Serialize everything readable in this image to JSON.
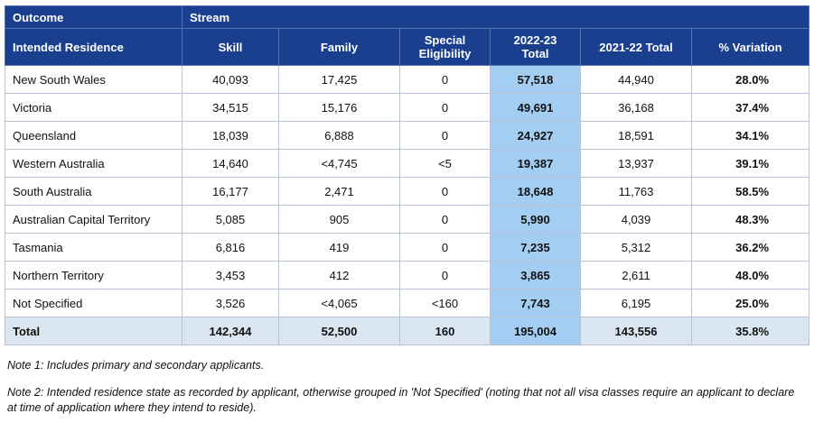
{
  "table": {
    "header_row1": {
      "outcome": "Outcome",
      "stream": "Stream"
    },
    "columns": {
      "residence": "Intended Residence",
      "skill": "Skill",
      "family": "Family",
      "special_1": "Special",
      "special_2": "Eligibility",
      "total2223_1": "2022-23",
      "total2223_2": "Total",
      "total2122": "2021-22 Total",
      "variation": "% Variation"
    },
    "rows": [
      {
        "name": "New South Wales",
        "skill": "40,093",
        "family": "17,425",
        "special": "0",
        "total2223": "57,518",
        "total2122": "44,940",
        "variation": "28.0%"
      },
      {
        "name": "Victoria",
        "skill": "34,515",
        "family": "15,176",
        "special": "0",
        "total2223": "49,691",
        "total2122": "36,168",
        "variation": "37.4%"
      },
      {
        "name": "Queensland",
        "skill": "18,039",
        "family": "6,888",
        "special": "0",
        "total2223": "24,927",
        "total2122": "18,591",
        "variation": "34.1%"
      },
      {
        "name": "Western Australia",
        "skill": "14,640",
        "family": "<4,745",
        "special": "<5",
        "total2223": "19,387",
        "total2122": "13,937",
        "variation": "39.1%"
      },
      {
        "name": "South Australia",
        "skill": "16,177",
        "family": "2,471",
        "special": "0",
        "total2223": "18,648",
        "total2122": "11,763",
        "variation": "58.5%"
      },
      {
        "name": "Australian Capital Territory",
        "skill": "5,085",
        "family": "905",
        "special": "0",
        "total2223": "5,990",
        "total2122": "4,039",
        "variation": "48.3%"
      },
      {
        "name": "Tasmania",
        "skill": "6,816",
        "family": "419",
        "special": "0",
        "total2223": "7,235",
        "total2122": "5,312",
        "variation": "36.2%"
      },
      {
        "name": "Northern Territory",
        "skill": "3,453",
        "family": "412",
        "special": "0",
        "total2223": "3,865",
        "total2122": "2,611",
        "variation": "48.0%"
      },
      {
        "name": "Not Specified",
        "skill": "3,526",
        "family": "<4,065",
        "special": "<160",
        "total2223": "7,743",
        "total2122": "6,195",
        "variation": "25.0%"
      }
    ],
    "total": {
      "name": "Total",
      "skill": "142,344",
      "family": "52,500",
      "special": "160",
      "total2223": "195,004",
      "total2122": "143,556",
      "variation": "35.8%"
    }
  },
  "notes": {
    "note1": "Note 1: Includes primary and secondary applicants.",
    "note2": "Note 2: Intended residence state as recorded by applicant, otherwise grouped in 'Not Specified' (noting that not all visa classes require an applicant to declare at time of application where they intend to reside)."
  }
}
